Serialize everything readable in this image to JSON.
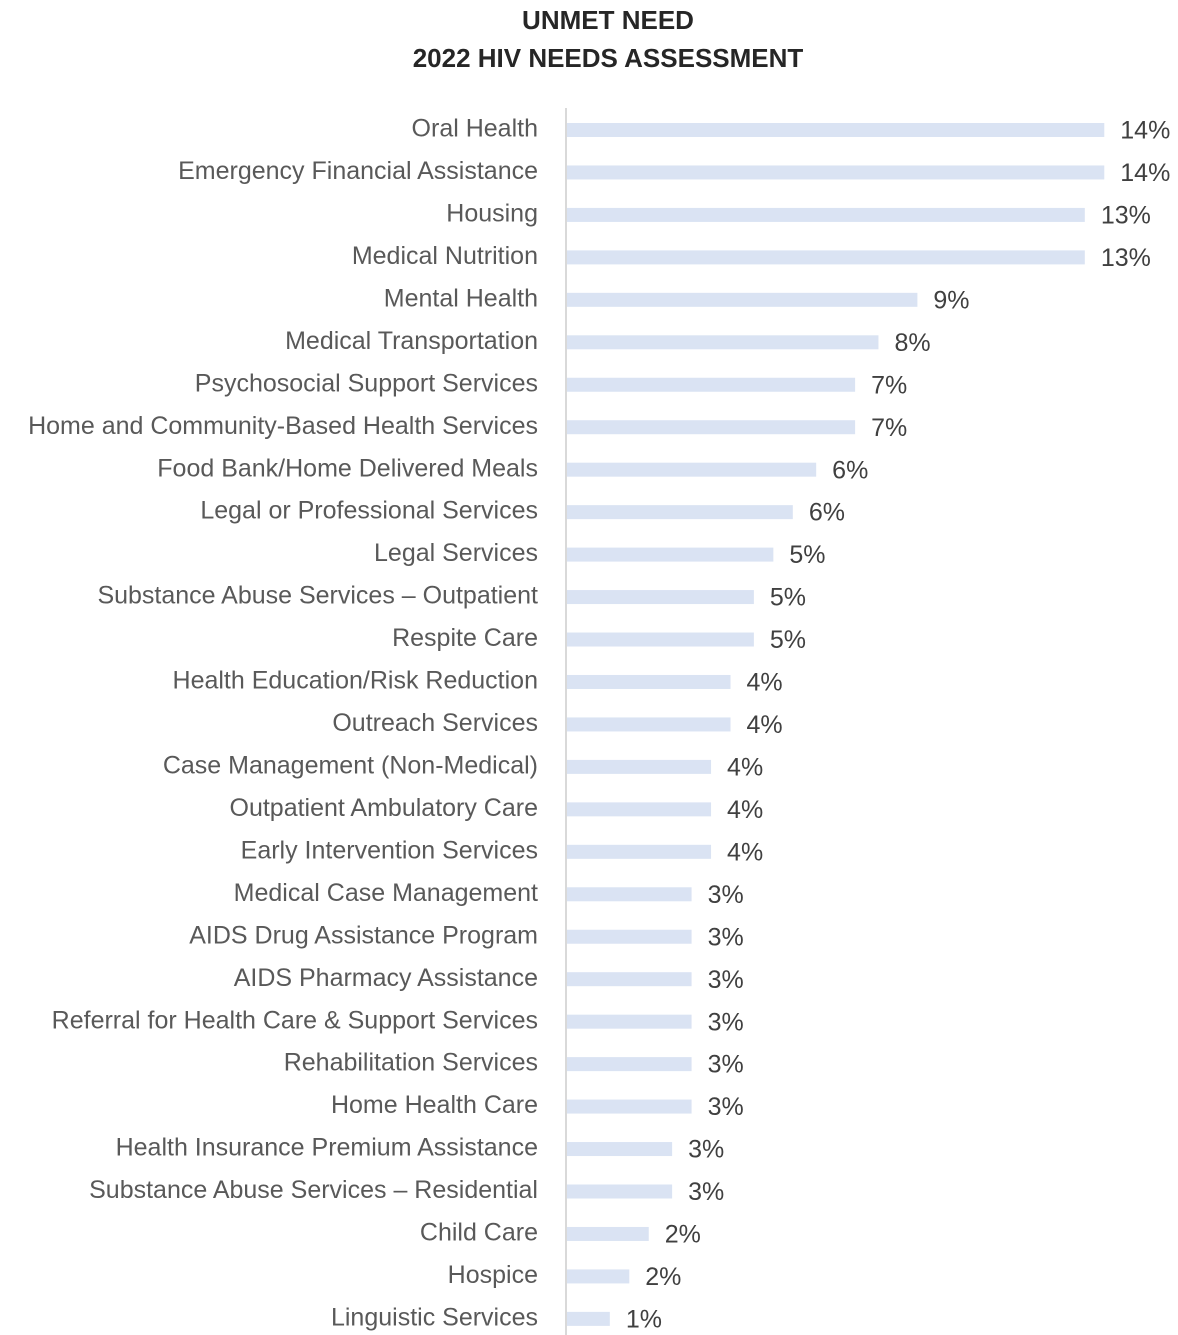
{
  "chart_data": {
    "type": "bar",
    "orientation": "horizontal",
    "title": "UNMET NEED",
    "subtitle": "2022 HIV NEEDS ASSESSMENT",
    "categories": [
      "Oral Health",
      "Emergency Financial Assistance",
      "Housing",
      "Medical Nutrition",
      "Mental Health",
      "Medical Transportation",
      "Psychosocial Support Services",
      "Home and Community-Based Health Services",
      "Food Bank/Home Delivered Meals",
      "Legal or Professional Services",
      "Legal Services",
      "Substance Abuse Services – Outpatient",
      "Respite Care",
      "Health Education/Risk Reduction",
      "Outreach Services",
      "Case Management (Non-Medical)",
      "Outpatient Ambulatory Care",
      "Early Intervention Services",
      "Medical Case Management",
      "AIDS Drug Assistance Program",
      "AIDS Pharmacy Assistance",
      "Referral for Health Care & Support Services",
      "Rehabilitation Services",
      "Home Health Care",
      "Health Insurance Premium Assistance",
      "Substance Abuse Services – Residential",
      "Child Care",
      "Hospice",
      "Linguistic Services"
    ],
    "values": [
      13.8,
      13.8,
      13.3,
      13.3,
      9.0,
      8.0,
      7.4,
      7.4,
      6.4,
      5.8,
      5.3,
      4.8,
      4.8,
      4.2,
      4.2,
      3.7,
      3.7,
      3.7,
      3.2,
      3.2,
      3.2,
      3.2,
      3.2,
      3.2,
      2.7,
      2.7,
      2.1,
      1.6,
      1.1
    ],
    "value_labels": [
      "14%",
      "14%",
      "13%",
      "13%",
      "9%",
      "8%",
      "7%",
      "7%",
      "6%",
      "6%",
      "5%",
      "5%",
      "5%",
      "4%",
      "4%",
      "4%",
      "4%",
      "4%",
      "3%",
      "3%",
      "3%",
      "3%",
      "3%",
      "3%",
      "3%",
      "3%",
      "2%",
      "2%",
      "1%"
    ],
    "color": "#dae3f3",
    "xlim": [
      0,
      15
    ],
    "grid": false
  }
}
